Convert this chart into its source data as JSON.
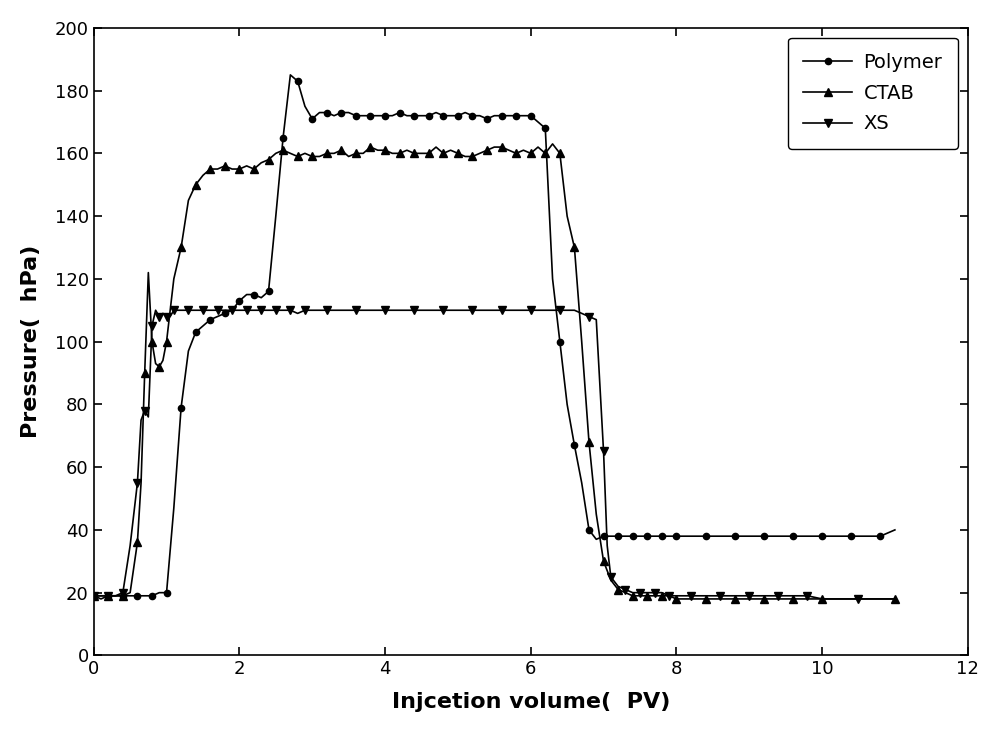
{
  "title": "",
  "xlabel": "Injcetion volume(  PV)",
  "ylabel": "Pressure(  hPa)",
  "xlim": [
    0,
    12
  ],
  "ylim": [
    0,
    200
  ],
  "xticks": [
    0,
    2,
    4,
    6,
    8,
    10,
    12
  ],
  "yticks": [
    0,
    20,
    40,
    60,
    80,
    100,
    120,
    140,
    160,
    180,
    200
  ],
  "color": "#000000",
  "legend": [
    "Polymer",
    "CTAB",
    "XS"
  ],
  "polymer_x": [
    0.0,
    0.1,
    0.2,
    0.3,
    0.4,
    0.5,
    0.6,
    0.7,
    0.8,
    0.9,
    1.0,
    1.1,
    1.2,
    1.3,
    1.4,
    1.5,
    1.6,
    1.7,
    1.8,
    1.9,
    2.0,
    2.1,
    2.2,
    2.3,
    2.4,
    2.5,
    2.6,
    2.7,
    2.8,
    2.9,
    3.0,
    3.1,
    3.2,
    3.3,
    3.4,
    3.5,
    3.6,
    3.7,
    3.8,
    3.9,
    4.0,
    4.1,
    4.2,
    4.3,
    4.4,
    4.5,
    4.6,
    4.7,
    4.8,
    4.9,
    5.0,
    5.1,
    5.2,
    5.3,
    5.4,
    5.5,
    5.6,
    5.7,
    5.8,
    5.9,
    6.0,
    6.1,
    6.2,
    6.3,
    6.4,
    6.5,
    6.6,
    6.7,
    6.8,
    6.9,
    7.0,
    7.1,
    7.2,
    7.3,
    7.4,
    7.5,
    7.6,
    7.7,
    7.8,
    7.9,
    8.0,
    8.2,
    8.4,
    8.6,
    8.8,
    9.0,
    9.2,
    9.4,
    9.6,
    9.8,
    10.0,
    10.2,
    10.4,
    10.6,
    10.8,
    11.0
  ],
  "polymer_y": [
    19,
    19,
    19,
    19,
    19,
    19,
    19,
    19,
    19,
    20,
    20,
    47,
    79,
    97,
    103,
    105,
    107,
    108,
    109,
    110,
    113,
    115,
    115,
    114,
    116,
    140,
    165,
    185,
    183,
    175,
    171,
    173,
    173,
    172,
    173,
    173,
    172,
    172,
    172,
    172,
    172,
    172,
    173,
    172,
    172,
    172,
    172,
    173,
    172,
    172,
    172,
    173,
    172,
    172,
    171,
    172,
    172,
    172,
    172,
    172,
    172,
    170,
    168,
    120,
    100,
    80,
    67,
    55,
    40,
    37,
    38,
    38,
    38,
    38,
    38,
    38,
    38,
    38,
    38,
    38,
    38,
    38,
    38,
    38,
    38,
    38,
    38,
    38,
    38,
    38,
    38,
    38,
    38,
    38,
    38,
    40
  ],
  "ctab_x": [
    0.0,
    0.1,
    0.2,
    0.3,
    0.4,
    0.5,
    0.6,
    0.65,
    0.7,
    0.75,
    0.8,
    0.85,
    0.9,
    0.95,
    1.0,
    1.1,
    1.2,
    1.3,
    1.4,
    1.5,
    1.6,
    1.7,
    1.8,
    1.9,
    2.0,
    2.1,
    2.2,
    2.3,
    2.4,
    2.5,
    2.6,
    2.7,
    2.8,
    2.9,
    3.0,
    3.1,
    3.2,
    3.3,
    3.4,
    3.5,
    3.6,
    3.7,
    3.8,
    3.9,
    4.0,
    4.1,
    4.2,
    4.3,
    4.4,
    4.5,
    4.6,
    4.7,
    4.8,
    4.9,
    5.0,
    5.1,
    5.2,
    5.3,
    5.4,
    5.5,
    5.6,
    5.7,
    5.8,
    5.9,
    6.0,
    6.1,
    6.2,
    6.3,
    6.4,
    6.5,
    6.6,
    6.7,
    6.8,
    6.9,
    7.0,
    7.1,
    7.2,
    7.3,
    7.4,
    7.5,
    7.6,
    7.7,
    7.8,
    7.9,
    8.0,
    8.2,
    8.4,
    8.6,
    8.8,
    9.0,
    9.2,
    9.4,
    9.6,
    9.8,
    10.0,
    10.5,
    11.0
  ],
  "ctab_y": [
    19,
    19,
    19,
    19,
    19,
    20,
    36,
    55,
    90,
    122,
    100,
    93,
    92,
    94,
    100,
    120,
    130,
    145,
    150,
    153,
    155,
    155,
    156,
    155,
    155,
    156,
    155,
    157,
    158,
    160,
    161,
    160,
    159,
    160,
    159,
    159,
    160,
    160,
    161,
    159,
    160,
    160,
    162,
    161,
    161,
    160,
    160,
    161,
    160,
    160,
    160,
    162,
    160,
    161,
    160,
    159,
    159,
    160,
    161,
    162,
    162,
    161,
    160,
    161,
    160,
    162,
    160,
    163,
    160,
    140,
    130,
    100,
    68,
    45,
    30,
    24,
    21,
    20,
    19,
    19,
    19,
    19,
    19,
    19,
    18,
    18,
    18,
    18,
    18,
    18,
    18,
    18,
    18,
    18,
    18,
    18,
    18
  ],
  "xs_x": [
    0.0,
    0.1,
    0.2,
    0.3,
    0.4,
    0.5,
    0.6,
    0.65,
    0.7,
    0.75,
    0.8,
    0.85,
    0.9,
    0.95,
    1.0,
    1.05,
    1.1,
    1.2,
    1.3,
    1.4,
    1.5,
    1.6,
    1.7,
    1.8,
    1.9,
    2.0,
    2.1,
    2.2,
    2.3,
    2.4,
    2.5,
    2.6,
    2.7,
    2.8,
    2.9,
    3.0,
    3.2,
    3.4,
    3.6,
    3.8,
    4.0,
    4.2,
    4.4,
    4.6,
    4.8,
    5.0,
    5.2,
    5.4,
    5.6,
    5.8,
    6.0,
    6.2,
    6.4,
    6.6,
    6.8,
    6.9,
    7.0,
    7.05,
    7.1,
    7.2,
    7.3,
    7.4,
    7.5,
    7.6,
    7.7,
    7.8,
    7.9,
    8.0,
    8.2,
    8.4,
    8.6,
    8.8,
    9.0,
    9.2,
    9.4,
    9.6,
    9.8,
    10.0,
    10.5,
    11.0
  ],
  "xs_y": [
    19,
    18,
    19,
    19,
    20,
    35,
    55,
    75,
    78,
    76,
    105,
    110,
    108,
    109,
    108,
    108,
    110,
    110,
    110,
    110,
    110,
    110,
    110,
    110,
    110,
    110,
    110,
    110,
    110,
    110,
    110,
    110,
    110,
    109,
    110,
    110,
    110,
    110,
    110,
    110,
    110,
    110,
    110,
    110,
    110,
    110,
    110,
    110,
    110,
    110,
    110,
    110,
    110,
    110,
    108,
    107,
    65,
    35,
    25,
    22,
    21,
    20,
    20,
    20,
    20,
    20,
    19,
    19,
    19,
    19,
    19,
    19,
    19,
    19,
    19,
    19,
    19,
    18,
    18,
    18
  ]
}
